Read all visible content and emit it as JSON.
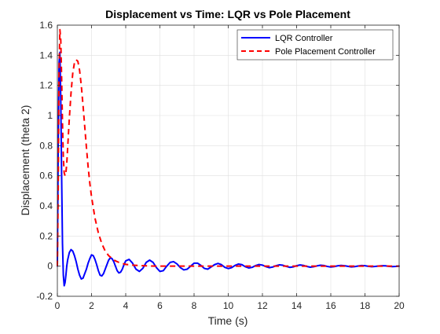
{
  "chart_data": {
    "type": "line",
    "title": "Displacement vs Time: LQR vs Pole Placement",
    "xlabel": "Time (s)",
    "ylabel": "Displacement (theta 2)",
    "xlim": [
      0,
      20
    ],
    "ylim": [
      -0.2,
      1.6
    ],
    "xticks": [
      0,
      2,
      4,
      6,
      8,
      10,
      12,
      14,
      16,
      18,
      20
    ],
    "yticks": [
      -0.2,
      0,
      0.2,
      0.4,
      0.6,
      0.8,
      1,
      1.2,
      1.4,
      1.6
    ],
    "grid": true,
    "legend_position": "top-right",
    "series": [
      {
        "name": "LQR Controller",
        "color": "#0000ff",
        "style": "solid",
        "x": [
          0,
          0.05,
          0.1,
          0.15,
          0.2,
          0.25,
          0.3,
          0.35,
          0.4,
          0.45,
          0.5,
          0.55,
          0.6,
          0.7,
          0.8,
          0.9,
          1.0,
          1.1,
          1.2,
          1.3,
          1.4,
          1.5,
          1.6,
          1.7,
          1.8,
          1.9,
          2.0,
          2.1,
          2.2,
          2.3,
          2.4,
          2.5,
          2.6,
          2.7,
          2.8,
          2.9,
          3.0,
          3.1,
          3.2,
          3.3,
          3.4,
          3.5,
          3.6,
          3.7,
          3.8,
          3.9,
          4.0,
          4.2,
          4.4,
          4.6,
          4.8,
          5.0,
          5.2,
          5.4,
          5.6,
          5.8,
          6.0,
          6.2,
          6.4,
          6.6,
          6.8,
          7.0,
          7.2,
          7.4,
          7.6,
          7.8,
          8.0,
          8.2,
          8.4,
          8.6,
          8.8,
          9.0,
          9.2,
          9.4,
          9.6,
          9.8,
          10.0,
          10.2,
          10.4,
          10.6,
          10.8,
          11.0,
          11.2,
          11.4,
          11.6,
          11.8,
          12.0,
          12.2,
          12.4,
          12.6,
          12.8,
          13.0,
          13.2,
          13.4,
          13.6,
          13.8,
          14.0,
          14.2,
          14.4,
          14.6,
          14.8,
          15.0,
          15.2,
          15.4,
          15.6,
          15.8,
          16.0,
          16.2,
          16.4,
          16.6,
          16.8,
          17.0,
          17.2,
          17.4,
          17.6,
          17.8,
          18.0,
          18.2,
          18.4,
          18.6,
          18.8,
          19.0,
          19.2,
          19.4,
          19.6,
          19.8,
          20.0
        ],
        "y": [
          0,
          0.8,
          1.35,
          1.42,
          1.1,
          0.6,
          0.15,
          -0.06,
          -0.13,
          -0.11,
          -0.06,
          0.0,
          0.04,
          0.09,
          0.11,
          0.1,
          0.07,
          0.03,
          -0.02,
          -0.06,
          -0.085,
          -0.08,
          -0.05,
          -0.02,
          0.02,
          0.05,
          0.075,
          0.07,
          0.045,
          0.01,
          -0.03,
          -0.06,
          -0.065,
          -0.05,
          -0.02,
          0.01,
          0.04,
          0.055,
          0.05,
          0.03,
          0.0,
          -0.03,
          -0.045,
          -0.04,
          -0.02,
          0.01,
          0.035,
          0.045,
          0.02,
          -0.02,
          -0.035,
          -0.015,
          0.025,
          0.04,
          0.025,
          -0.01,
          -0.035,
          -0.03,
          0.0,
          0.025,
          0.03,
          0.015,
          -0.01,
          -0.025,
          -0.02,
          0.0,
          0.02,
          0.02,
          0.005,
          -0.015,
          -0.02,
          -0.005,
          0.01,
          0.018,
          0.01,
          -0.008,
          -0.016,
          -0.01,
          0.005,
          0.014,
          0.01,
          -0.004,
          -0.012,
          -0.008,
          0.004,
          0.011,
          0.007,
          -0.003,
          -0.01,
          -0.006,
          0.003,
          0.009,
          0.006,
          -0.002,
          -0.008,
          -0.005,
          0.003,
          0.008,
          0.005,
          -0.002,
          -0.007,
          -0.004,
          0.002,
          0.006,
          0.004,
          -0.002,
          -0.006,
          -0.003,
          0.002,
          0.005,
          0.003,
          -0.001,
          -0.005,
          -0.003,
          0.001,
          0.004,
          0.003,
          -0.001,
          -0.004,
          -0.002,
          0.001,
          0.003,
          0.002,
          -0.001,
          -0.003,
          -0.002,
          0.0
        ]
      },
      {
        "name": "Pole Placement Controller",
        "color": "#ff0000",
        "style": "dashed",
        "x": [
          0,
          0.05,
          0.1,
          0.15,
          0.2,
          0.25,
          0.3,
          0.35,
          0.4,
          0.45,
          0.5,
          0.55,
          0.6,
          0.7,
          0.8,
          0.9,
          1.0,
          1.1,
          1.2,
          1.3,
          1.4,
          1.5,
          1.6,
          1.7,
          1.8,
          1.9,
          2.0,
          2.2,
          2.4,
          2.6,
          2.8,
          3.0,
          3.2,
          3.4,
          3.6,
          3.8,
          4.0,
          4.5,
          5.0,
          5.5,
          6.0,
          7.0,
          8.0,
          10.0,
          12.0,
          14.0,
          16.0,
          18.0,
          20.0
        ],
        "y": [
          0,
          0.5,
          1.3,
          1.57,
          1.5,
          1.25,
          0.95,
          0.72,
          0.62,
          0.6,
          0.62,
          0.68,
          0.78,
          0.98,
          1.15,
          1.28,
          1.35,
          1.37,
          1.36,
          1.3,
          1.2,
          1.07,
          0.93,
          0.79,
          0.66,
          0.55,
          0.46,
          0.32,
          0.22,
          0.15,
          0.1,
          0.07,
          0.05,
          0.035,
          0.025,
          0.018,
          0.012,
          0.006,
          0.003,
          0.001,
          0.0,
          0.0,
          0.0,
          0.0,
          0.0,
          0.0,
          0.0,
          0.0,
          0.0
        ]
      }
    ]
  }
}
